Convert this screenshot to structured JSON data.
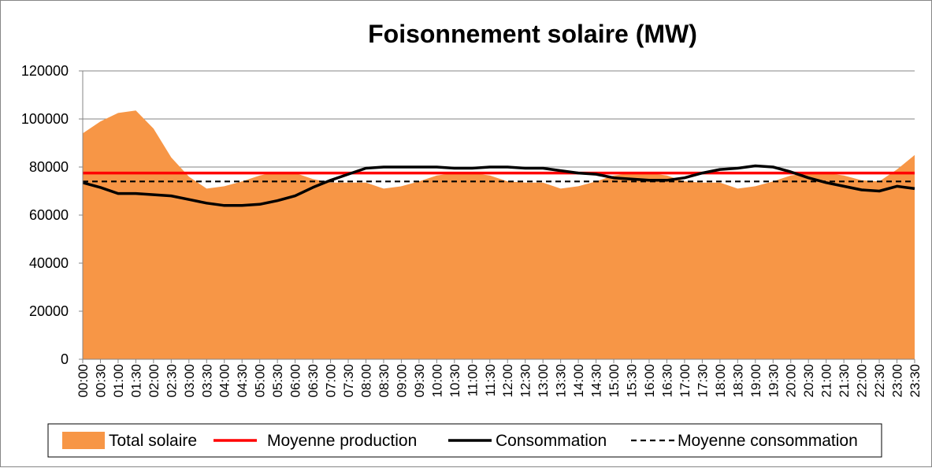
{
  "chart_data": {
    "type": "area",
    "title": "Foisonnement solaire (MW)",
    "xlabel": "",
    "ylabel": "",
    "ylim": [
      0,
      120000
    ],
    "yticks": [
      0,
      20000,
      40000,
      60000,
      80000,
      100000,
      120000
    ],
    "grid": true,
    "legend_position": "bottom",
    "categories": [
      "00:00",
      "00:30",
      "01:00",
      "01:30",
      "02:00",
      "02:30",
      "03:00",
      "03:30",
      "04:00",
      "04:30",
      "05:00",
      "05:30",
      "06:00",
      "06:30",
      "07:00",
      "07:30",
      "08:00",
      "08:30",
      "09:00",
      "09:30",
      "10:00",
      "10:30",
      "11:00",
      "11:30",
      "12:00",
      "12:30",
      "13:00",
      "13:30",
      "14:00",
      "14:30",
      "15:00",
      "15:30",
      "16:00",
      "16:30",
      "17:00",
      "17:30",
      "18:00",
      "18:30",
      "19:00",
      "19:30",
      "20:00",
      "20:30",
      "21:00",
      "21:30",
      "22:00",
      "22:30",
      "23:00",
      "23:30"
    ],
    "series": [
      {
        "name": "Total solaire",
        "kind": "area",
        "color": "#F79646",
        "values": [
          94000,
          99000,
          102500,
          103500,
          96000,
          84000,
          76000,
          71000,
          72000,
          74000,
          76500,
          78000,
          77500,
          75000,
          73500,
          73500,
          73500,
          71000,
          72000,
          74000,
          76500,
          77500,
          77500,
          76500,
          74000,
          73500,
          73500,
          71000,
          72000,
          74000,
          76500,
          77500,
          77500,
          76500,
          74000,
          73500,
          73500,
          71000,
          72000,
          74000,
          76500,
          77500,
          77500,
          76500,
          74500,
          74000,
          79000,
          85000
        ]
      },
      {
        "name": "Moyenne production",
        "kind": "line",
        "color": "#FF0000",
        "values": [
          77500,
          77500,
          77500,
          77500,
          77500,
          77500,
          77500,
          77500,
          77500,
          77500,
          77500,
          77500,
          77500,
          77500,
          77500,
          77500,
          77500,
          77500,
          77500,
          77500,
          77500,
          77500,
          77500,
          77500,
          77500,
          77500,
          77500,
          77500,
          77500,
          77500,
          77500,
          77500,
          77500,
          77500,
          77500,
          77500,
          77500,
          77500,
          77500,
          77500,
          77500,
          77500,
          77500,
          77500,
          77500,
          77500,
          77500,
          77500
        ]
      },
      {
        "name": "Consommation",
        "kind": "line",
        "color": "#000000",
        "values": [
          73500,
          71500,
          69000,
          69000,
          68500,
          68000,
          66500,
          65000,
          64000,
          64000,
          64500,
          66000,
          68000,
          71500,
          74500,
          77000,
          79500,
          80000,
          80000,
          80000,
          80000,
          79500,
          79500,
          80000,
          80000,
          79500,
          79500,
          78500,
          77500,
          77000,
          75500,
          75000,
          74500,
          74500,
          75500,
          77500,
          79000,
          79500,
          80500,
          80000,
          78000,
          75500,
          73500,
          72000,
          70500,
          70000,
          72000,
          71000
        ]
      },
      {
        "name": "Moyenne consommation",
        "kind": "dashed-line",
        "color": "#000000",
        "values": [
          74000,
          74000,
          74000,
          74000,
          74000,
          74000,
          74000,
          74000,
          74000,
          74000,
          74000,
          74000,
          74000,
          74000,
          74000,
          74000,
          74000,
          74000,
          74000,
          74000,
          74000,
          74000,
          74000,
          74000,
          74000,
          74000,
          74000,
          74000,
          74000,
          74000,
          74000,
          74000,
          74000,
          74000,
          74000,
          74000,
          74000,
          74000,
          74000,
          74000,
          74000,
          74000,
          74000,
          74000,
          74000,
          74000,
          74000,
          74000
        ]
      }
    ]
  }
}
